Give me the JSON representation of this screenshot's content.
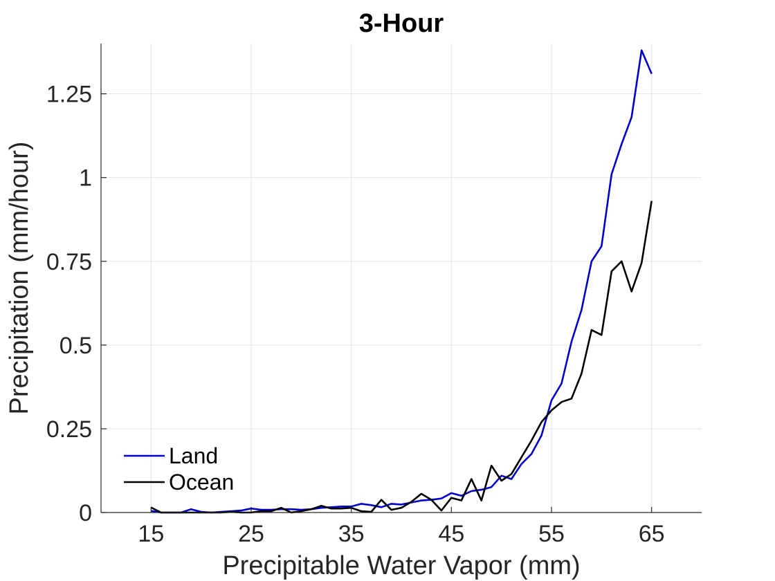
{
  "chart_data": {
    "type": "line",
    "title": "3-Hour",
    "xlabel": "Precipitable Water Vapor (mm)",
    "ylabel": "Precipitation (mm/hour)",
    "xlim": [
      10,
      70
    ],
    "ylim": [
      0,
      1.4
    ],
    "xticks": [
      15,
      25,
      35,
      45,
      55,
      65
    ],
    "xtick_labels": [
      "15",
      "25",
      "35",
      "45",
      "55",
      "65"
    ],
    "yticks": [
      0,
      0.25,
      0.5,
      0.75,
      1,
      1.25
    ],
    "ytick_labels": [
      "0",
      "0.25",
      "0.5",
      "0.75",
      "1",
      "1.25"
    ],
    "grid": true,
    "legend_position": "bottom-left",
    "x": [
      15,
      16,
      17,
      18,
      19,
      20,
      21,
      22,
      23,
      24,
      25,
      26,
      27,
      28,
      29,
      30,
      31,
      32,
      33,
      34,
      35,
      36,
      37,
      38,
      39,
      40,
      41,
      42,
      43,
      44,
      45,
      46,
      47,
      48,
      49,
      50,
      51,
      52,
      53,
      54,
      55,
      56,
      57,
      58,
      59,
      60,
      61,
      62,
      63,
      64,
      65
    ],
    "series": [
      {
        "name": "Land",
        "color": "#0000cc",
        "values": [
          0.005,
          0.0,
          0.0,
          0.0,
          0.01,
          0.002,
          0.0,
          0.002,
          0.004,
          0.006,
          0.012,
          0.008,
          0.008,
          0.01,
          0.01,
          0.008,
          0.01,
          0.014,
          0.016,
          0.018,
          0.018,
          0.026,
          0.022,
          0.016,
          0.026,
          0.024,
          0.03,
          0.036,
          0.038,
          0.042,
          0.058,
          0.05,
          0.064,
          0.068,
          0.076,
          0.11,
          0.1,
          0.145,
          0.175,
          0.23,
          0.335,
          0.385,
          0.51,
          0.605,
          0.75,
          0.795,
          1.01,
          1.1,
          1.18,
          1.38,
          1.31
        ]
      },
      {
        "name": "Ocean",
        "color": "#000000",
        "values": [
          0.015,
          0.0,
          0.0,
          0.0,
          0.0,
          0.0,
          0.0,
          0.0,
          0.002,
          0.0,
          0.0,
          0.004,
          0.004,
          0.014,
          0.0,
          0.004,
          0.01,
          0.02,
          0.012,
          0.012,
          0.014,
          0.004,
          0.002,
          0.038,
          0.008,
          0.014,
          0.032,
          0.056,
          0.038,
          0.006,
          0.044,
          0.036,
          0.1,
          0.036,
          0.14,
          0.095,
          0.115,
          0.165,
          0.215,
          0.27,
          0.305,
          0.33,
          0.34,
          0.415,
          0.545,
          0.53,
          0.72,
          0.75,
          0.66,
          0.745,
          0.93
        ]
      }
    ]
  }
}
